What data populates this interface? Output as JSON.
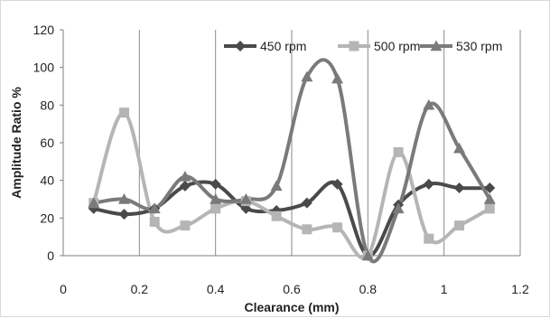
{
  "chart_data": {
    "type": "line",
    "title": "",
    "xlabel": "Clearance (mm)",
    "ylabel": "Amplitude Ratio %",
    "xlim": [
      0,
      1.2
    ],
    "ylim": [
      0,
      120
    ],
    "xticks": [
      0,
      0.2,
      0.4,
      0.6,
      0.8,
      1,
      1.2
    ],
    "xtick_labels": [
      "0",
      "0.2",
      "0.4",
      "0.6",
      "0.8",
      "1",
      "1.2"
    ],
    "yticks": [
      0,
      20,
      40,
      60,
      80,
      100,
      120
    ],
    "ytick_labels": [
      "0",
      "20",
      "40",
      "60",
      "80",
      "100",
      "120"
    ],
    "grid": "vertical gridlines",
    "legend_position": "top-right",
    "smooth": true,
    "series": [
      {
        "name": "450 rpm",
        "color": "#4a4a4a",
        "marker": "diamond",
        "x": [
          0.08,
          0.16,
          0.24,
          0.32,
          0.4,
          0.48,
          0.56,
          0.64,
          0.72,
          0.8,
          0.88,
          0.96,
          1.04,
          1.12
        ],
        "y": [
          25,
          22,
          25,
          37,
          38,
          25,
          24,
          28,
          38,
          0,
          27,
          38,
          36,
          36
        ]
      },
      {
        "name": "500 rpm",
        "color": "#b5b5b5",
        "marker": "square",
        "x": [
          0.08,
          0.16,
          0.24,
          0.32,
          0.4,
          0.48,
          0.56,
          0.64,
          0.72,
          0.8,
          0.88,
          0.96,
          1.04,
          1.12
        ],
        "y": [
          28,
          76,
          18,
          16,
          25,
          29,
          21,
          14,
          15,
          0,
          55,
          9,
          16,
          25
        ]
      },
      {
        "name": "530 rpm",
        "color": "#7a7a7a",
        "marker": "triangle",
        "x": [
          0.08,
          0.16,
          0.24,
          0.32,
          0.4,
          0.48,
          0.56,
          0.64,
          0.72,
          0.8,
          0.88,
          0.96,
          1.04,
          1.12
        ],
        "y": [
          28,
          30,
          25,
          42,
          30,
          30,
          37,
          95,
          94,
          0,
          25,
          80,
          57,
          30
        ]
      }
    ]
  }
}
